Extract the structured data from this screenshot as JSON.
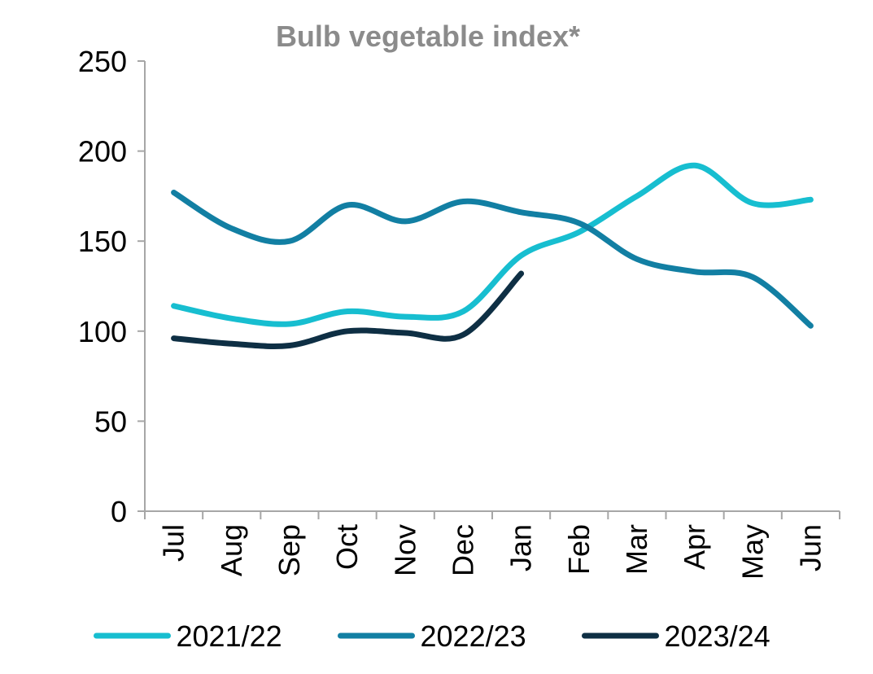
{
  "chart_data": {
    "type": "line",
    "title": "Bulb vegetable index*",
    "xlabel": "",
    "ylabel": "",
    "categories": [
      "Jul",
      "Aug",
      "Sep",
      "Oct",
      "Nov",
      "Dec",
      "Jan",
      "Feb",
      "Mar",
      "Apr",
      "May",
      "Jun"
    ],
    "ylim": [
      0,
      250
    ],
    "yticks": [
      0,
      50,
      100,
      150,
      200,
      250
    ],
    "grid": false,
    "legend_position": "bottom",
    "series": [
      {
        "name": "2021/22",
        "color": "#17bed0",
        "values": [
          114,
          107,
          104,
          111,
          108,
          111,
          142,
          155,
          175,
          192,
          171,
          173
        ]
      },
      {
        "name": "2022/23",
        "color": "#127fa3",
        "values": [
          177,
          157,
          150,
          170,
          161,
          172,
          166,
          160,
          140,
          133,
          130,
          103
        ]
      },
      {
        "name": "2023/24",
        "color": "#0e2f44",
        "values": [
          96,
          93,
          92,
          100,
          99,
          98,
          132,
          null,
          null,
          null,
          null,
          null
        ]
      }
    ]
  },
  "colors": {
    "title": "#8b8b8b",
    "axis": "#a6a6a6",
    "text": "#000000"
  }
}
